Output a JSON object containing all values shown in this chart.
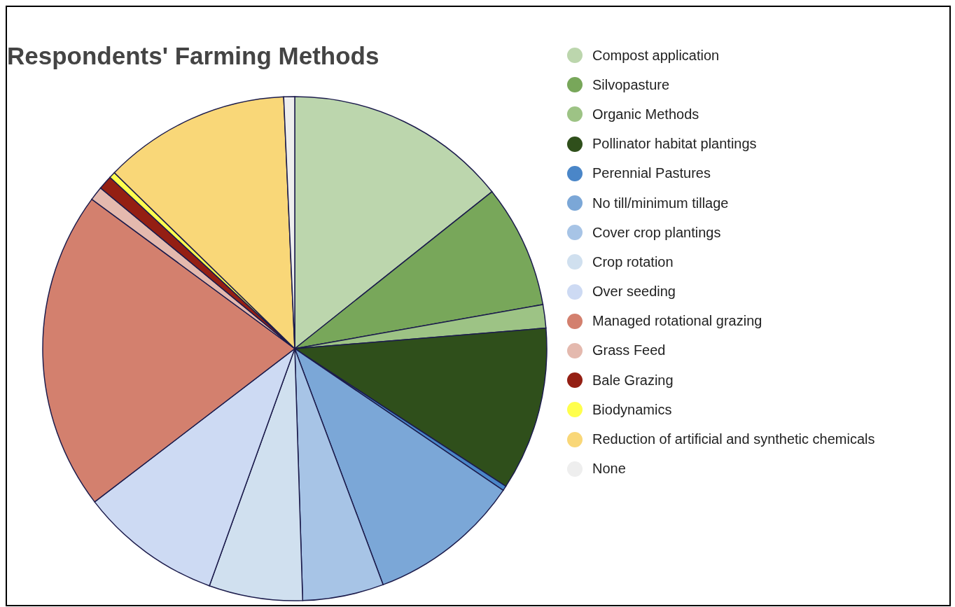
{
  "chart_data": {
    "type": "pie",
    "title": "Respondents' Farming Methods",
    "legend": "right",
    "categories": [
      "Compost application",
      "Silvopasture",
      "Organic Methods",
      "Pollinator habitat plantings",
      "Perennial Pastures",
      "No till/minimum tillage",
      "Cover crop plantings",
      "Crop rotation",
      "Over seeding",
      "Managed rotational grazing",
      "Grass Feed",
      "Bale Grazing",
      "Biodynamics",
      "Reduction of artificial and synthetic chemicals",
      "None"
    ],
    "values": [
      14.3,
      7.9,
      1.5,
      10.5,
      0.3,
      9.8,
      5.2,
      6.0,
      9.1,
      20.5,
      0.9,
      0.9,
      0.4,
      12.0,
      0.7
    ],
    "colors": [
      "#bcd6ad",
      "#78a75a",
      "#9dc385",
      "#2f4f1b",
      "#4a86c8",
      "#7ba7d7",
      "#a7c4e6",
      "#d0e0ef",
      "#cddaf3",
      "#d3806e",
      "#e4b9ae",
      "#941f13",
      "#ffff4d",
      "#f9d778",
      "#eeeeee"
    ]
  }
}
